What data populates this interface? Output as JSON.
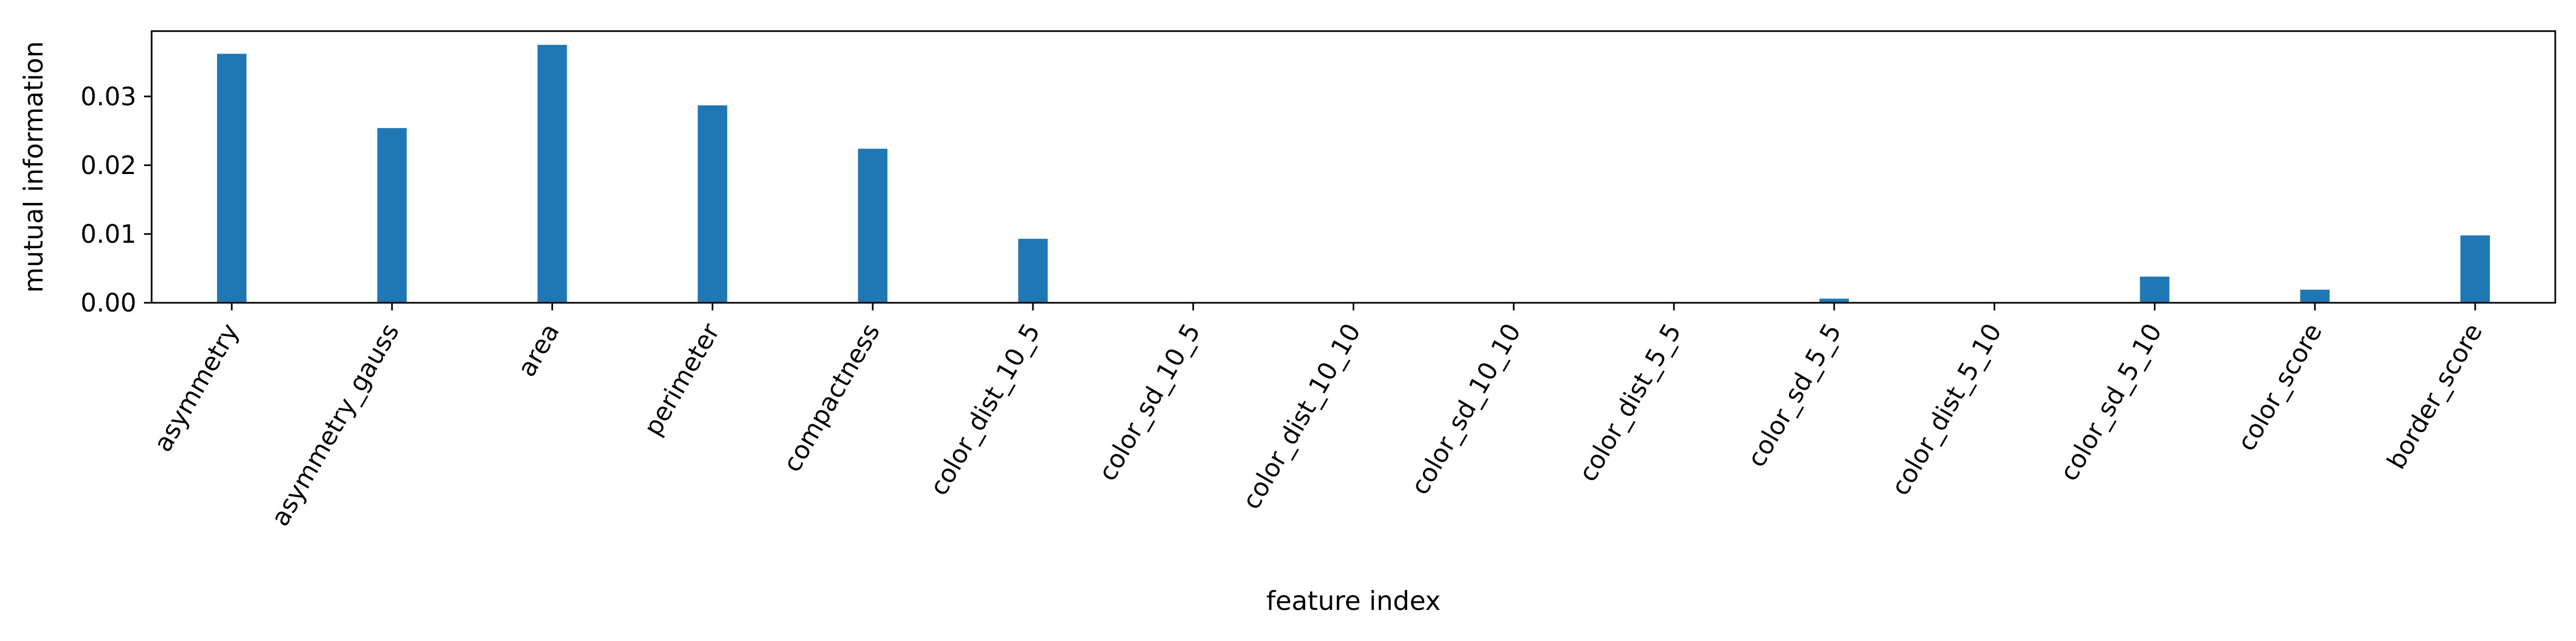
{
  "chart_data": {
    "type": "bar",
    "title": "",
    "xlabel": "feature index",
    "ylabel": "mutual information",
    "categories": [
      "asymmetry",
      "asymmetry_gauss",
      "area",
      "perimeter",
      "compactness",
      "color_dist_10_5",
      "color_sd_10_5",
      "color_dist_10_10",
      "color_sd_10_10",
      "color_dist_5_5",
      "color_sd_5_5",
      "color_dist_5_10",
      "color_sd_5_10",
      "color_score",
      "border_score"
    ],
    "values": [
      0.0362,
      0.0254,
      0.0375,
      0.0287,
      0.0224,
      0.0093,
      0.0,
      0.0,
      0.0,
      0.0,
      0.0006,
      0.0,
      0.0038,
      0.0019,
      0.0098
    ],
    "ylim": [
      0,
      0.0395
    ],
    "yticks": [
      0.0,
      0.01,
      0.02,
      0.03
    ],
    "ytick_labels": [
      "0.00",
      "0.01",
      "0.02",
      "0.03"
    ],
    "grid": false,
    "bar_color": "#1f77b4"
  }
}
